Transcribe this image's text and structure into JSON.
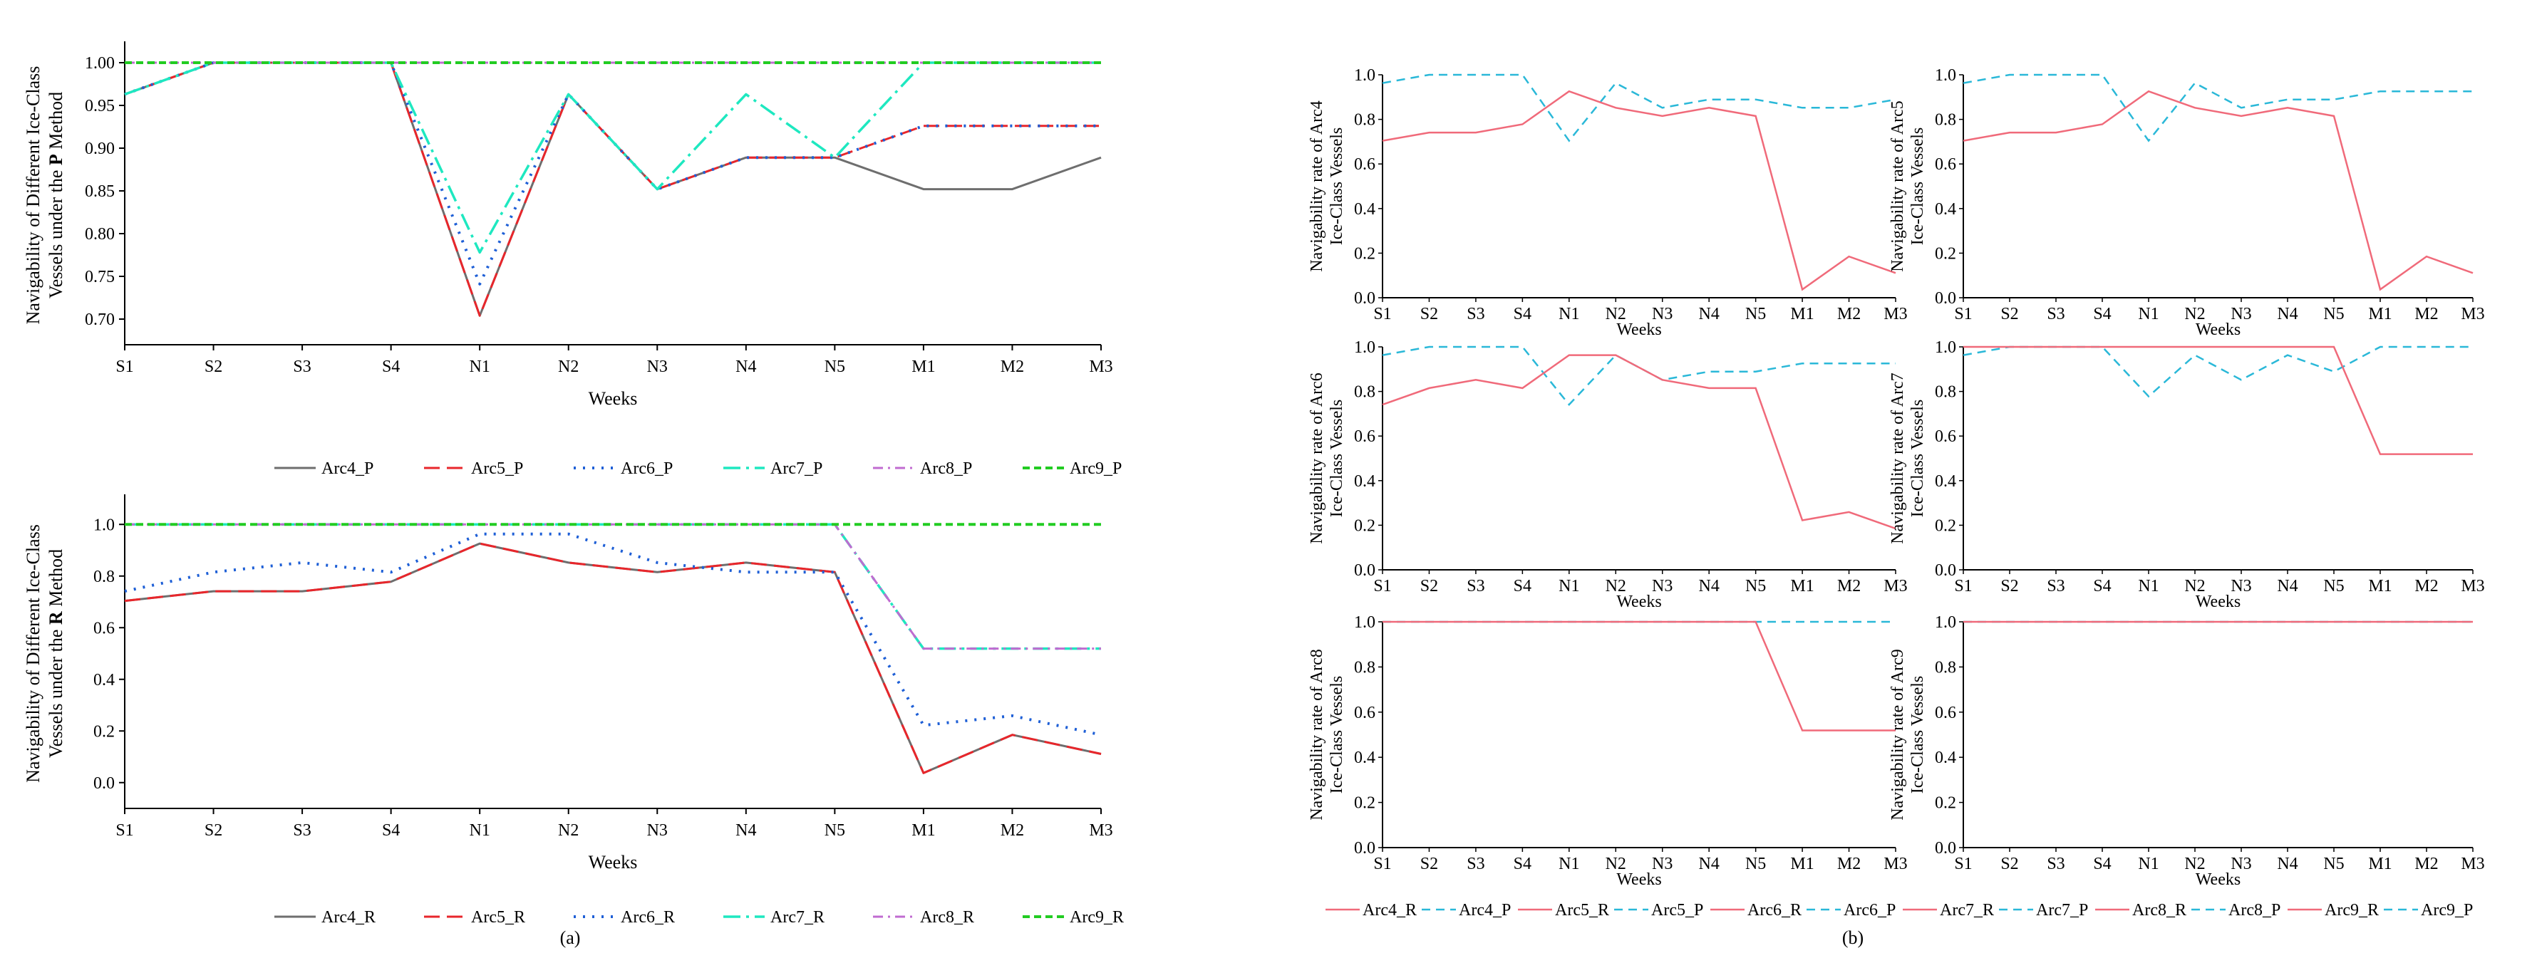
{
  "weeks": [
    "S1",
    "S2",
    "S3",
    "S4",
    "N1",
    "N2",
    "N3",
    "N4",
    "N5",
    "M1",
    "M2",
    "M3"
  ],
  "colors": {
    "Arc4_P": "#6e6e6e",
    "Arc5_P": "#e8262b",
    "Arc6_P": "#1e5fd6",
    "Arc7_P": "#1ee8c0",
    "Arc8_P": "#c06bd0",
    "Arc9_P": "#22cc22",
    "Arc4_R": "#6e6e6e",
    "Arc5_R": "#e8262b",
    "Arc6_R": "#1e5fd6",
    "Arc7_R": "#1ee8c0",
    "Arc8_R": "#c06bd0",
    "Arc9_R": "#22cc22",
    "small_R": "#f06a7a",
    "small_P": "#2ab8d8"
  },
  "caption_a": "(a)",
  "caption_b": "(b)",
  "chart_data": [
    {
      "id": "top",
      "type": "line",
      "title": "",
      "xlabel": "Weeks",
      "ylabel_line1_prefix": "Navigability of Different Ice-Class",
      "ylabel_line2_prefix": "Vessels under the ",
      "ylabel_method": "P",
      "ylabel_line2_suffix": " Method",
      "ylim": [
        0.67,
        1.02
      ],
      "yticks": [
        "0.70",
        "0.75",
        "0.80",
        "0.85",
        "0.90",
        "0.95",
        "1.00"
      ],
      "categories": [
        "S1",
        "S2",
        "S3",
        "S4",
        "N1",
        "N2",
        "N3",
        "N4",
        "N5",
        "M1",
        "M2",
        "M3"
      ],
      "series": [
        {
          "name": "Arc4_P",
          "values": [
            0.963,
            1,
            1,
            1,
            0.704,
            0.963,
            0.852,
            0.889,
            0.889,
            0.852,
            0.852,
            0.889
          ]
        },
        {
          "name": "Arc5_P",
          "values": [
            0.963,
            1,
            1,
            1,
            0.704,
            0.963,
            0.852,
            0.889,
            0.889,
            0.926,
            0.926,
            0.926
          ]
        },
        {
          "name": "Arc6_P",
          "values": [
            0.963,
            1,
            1,
            1,
            0.741,
            0.963,
            0.852,
            0.889,
            0.889,
            0.926,
            0.926,
            0.926
          ]
        },
        {
          "name": "Arc7_P",
          "values": [
            0.963,
            1,
            1,
            1,
            0.778,
            0.963,
            0.852,
            0.963,
            0.889,
            1,
            1,
            1
          ]
        },
        {
          "name": "Arc8_P",
          "values": [
            1,
            1,
            1,
            1,
            1,
            1,
            1,
            1,
            1,
            1,
            1,
            1
          ]
        },
        {
          "name": "Arc9_P",
          "values": [
            1,
            1,
            1,
            1,
            1,
            1,
            1,
            1,
            1,
            1,
            1,
            1
          ]
        }
      ],
      "legend": [
        "Arc4_P",
        "Arc5_P",
        "Arc6_P",
        "Arc7_P",
        "Arc8_P",
        "Arc9_P"
      ]
    },
    {
      "id": "bottom",
      "type": "line",
      "title": "",
      "xlabel": "Weeks",
      "ylabel_line1_prefix": "Navigability of Different Ice-Class",
      "ylabel_line2_prefix": "Vessels under the ",
      "ylabel_method": "R",
      "ylabel_line2_suffix": " Method",
      "ylim": [
        -0.1,
        1.1
      ],
      "yticks": [
        "0.0",
        "0.2",
        "0.4",
        "0.6",
        "0.8",
        "1.0"
      ],
      "categories": [
        "S1",
        "S2",
        "S3",
        "S4",
        "N1",
        "N2",
        "N3",
        "N4",
        "N5",
        "M1",
        "M2",
        "M3"
      ],
      "series": [
        {
          "name": "Arc4_R",
          "values": [
            0.704,
            0.741,
            0.741,
            0.778,
            0.926,
            0.852,
            0.815,
            0.852,
            0.815,
            0.037,
            0.185,
            0.111
          ]
        },
        {
          "name": "Arc5_R",
          "values": [
            0.704,
            0.741,
            0.741,
            0.778,
            0.926,
            0.852,
            0.815,
            0.852,
            0.815,
            0.037,
            0.185,
            0.111
          ]
        },
        {
          "name": "Arc6_R",
          "values": [
            0.741,
            0.815,
            0.852,
            0.815,
            0.963,
            0.963,
            0.852,
            0.815,
            0.815,
            0.222,
            0.259,
            0.185
          ]
        },
        {
          "name": "Arc7_R",
          "values": [
            1,
            1,
            1,
            1,
            1,
            1,
            1,
            1,
            1,
            0.519,
            0.519,
            0.519
          ]
        },
        {
          "name": "Arc8_R",
          "values": [
            1,
            1,
            1,
            1,
            1,
            1,
            1,
            1,
            1,
            0.519,
            0.519,
            0.519
          ]
        },
        {
          "name": "Arc9_R",
          "values": [
            1,
            1,
            1,
            1,
            1,
            1,
            1,
            1,
            1,
            1,
            1,
            1
          ]
        }
      ],
      "legend": [
        "Arc4_R",
        "Arc5_R",
        "Arc6_R",
        "Arc7_R",
        "Arc8_R",
        "Arc9_R"
      ]
    },
    {
      "id": "small",
      "type": "line",
      "title": "",
      "xlabel": "Weeks",
      "ylim": [
        0,
        1
      ],
      "yticks": [
        "0.0",
        "0.2",
        "0.4",
        "0.6",
        "0.8",
        "1.0"
      ],
      "categories": [
        "S1",
        "S2",
        "S3",
        "S4",
        "N1",
        "N2",
        "N3",
        "N4",
        "N5",
        "M1",
        "M2",
        "M3"
      ],
      "panels": [
        {
          "name": "Arc4",
          "ylabel_line1": "Navigability rate of Arc4",
          "ylabel_line2": "Ice-Class Vessels",
          "R": [
            0.704,
            0.741,
            0.741,
            0.778,
            0.926,
            0.852,
            0.815,
            0.852,
            0.815,
            0.037,
            0.185,
            0.111
          ],
          "P": [
            0.963,
            1,
            1,
            1,
            0.704,
            0.963,
            0.852,
            0.889,
            0.889,
            0.852,
            0.852,
            0.889
          ]
        },
        {
          "name": "Arc5",
          "ylabel_line1": "Navigability rate of Arc5",
          "ylabel_line2": "Ice-Class Vessels",
          "R": [
            0.704,
            0.741,
            0.741,
            0.778,
            0.926,
            0.852,
            0.815,
            0.852,
            0.815,
            0.037,
            0.185,
            0.111
          ],
          "P": [
            0.963,
            1,
            1,
            1,
            0.704,
            0.963,
            0.852,
            0.889,
            0.889,
            0.926,
            0.926,
            0.926
          ]
        },
        {
          "name": "Arc6",
          "ylabel_line1": "Navigability rate of Arc6",
          "ylabel_line2": "Ice-Class Vessels",
          "R": [
            0.741,
            0.815,
            0.852,
            0.815,
            0.963,
            0.963,
            0.852,
            0.815,
            0.815,
            0.222,
            0.259,
            0.185
          ],
          "P": [
            0.963,
            1,
            1,
            1,
            0.741,
            0.963,
            0.852,
            0.889,
            0.889,
            0.926,
            0.926,
            0.926
          ]
        },
        {
          "name": "Arc7",
          "ylabel_line1": "Navigability rate of Arc7",
          "ylabel_line2": "Ice-Class Vessels",
          "R": [
            1,
            1,
            1,
            1,
            1,
            1,
            1,
            1,
            1,
            0.519,
            0.519,
            0.519
          ],
          "P": [
            0.963,
            1,
            1,
            1,
            0.778,
            0.963,
            0.852,
            0.963,
            0.889,
            1,
            1,
            1
          ]
        },
        {
          "name": "Arc8",
          "ylabel_line1": "Navigability rate of Arc8",
          "ylabel_line2": "Ice-Class Vessels",
          "R": [
            1,
            1,
            1,
            1,
            1,
            1,
            1,
            1,
            1,
            0.519,
            0.519,
            0.519
          ],
          "P": [
            1,
            1,
            1,
            1,
            1,
            1,
            1,
            1,
            1,
            1,
            1,
            1
          ]
        },
        {
          "name": "Arc9",
          "ylabel_line1": "Navigability rate of Arc9",
          "ylabel_line2": "Ice-Class Vessels",
          "R": [
            1,
            1,
            1,
            1,
            1,
            1,
            1,
            1,
            1,
            1,
            1,
            1
          ],
          "P": [
            1,
            1,
            1,
            1,
            1,
            1,
            1,
            1,
            1,
            1,
            1,
            1
          ]
        }
      ],
      "legend": [
        "Arc4_R",
        "Arc4_P",
        "Arc5_R",
        "Arc5_P",
        "Arc6_R",
        "Arc6_P",
        "Arc7_R",
        "Arc7_P",
        "Arc8_R",
        "Arc8_P",
        "Arc9_R",
        "Arc9_P"
      ]
    }
  ]
}
